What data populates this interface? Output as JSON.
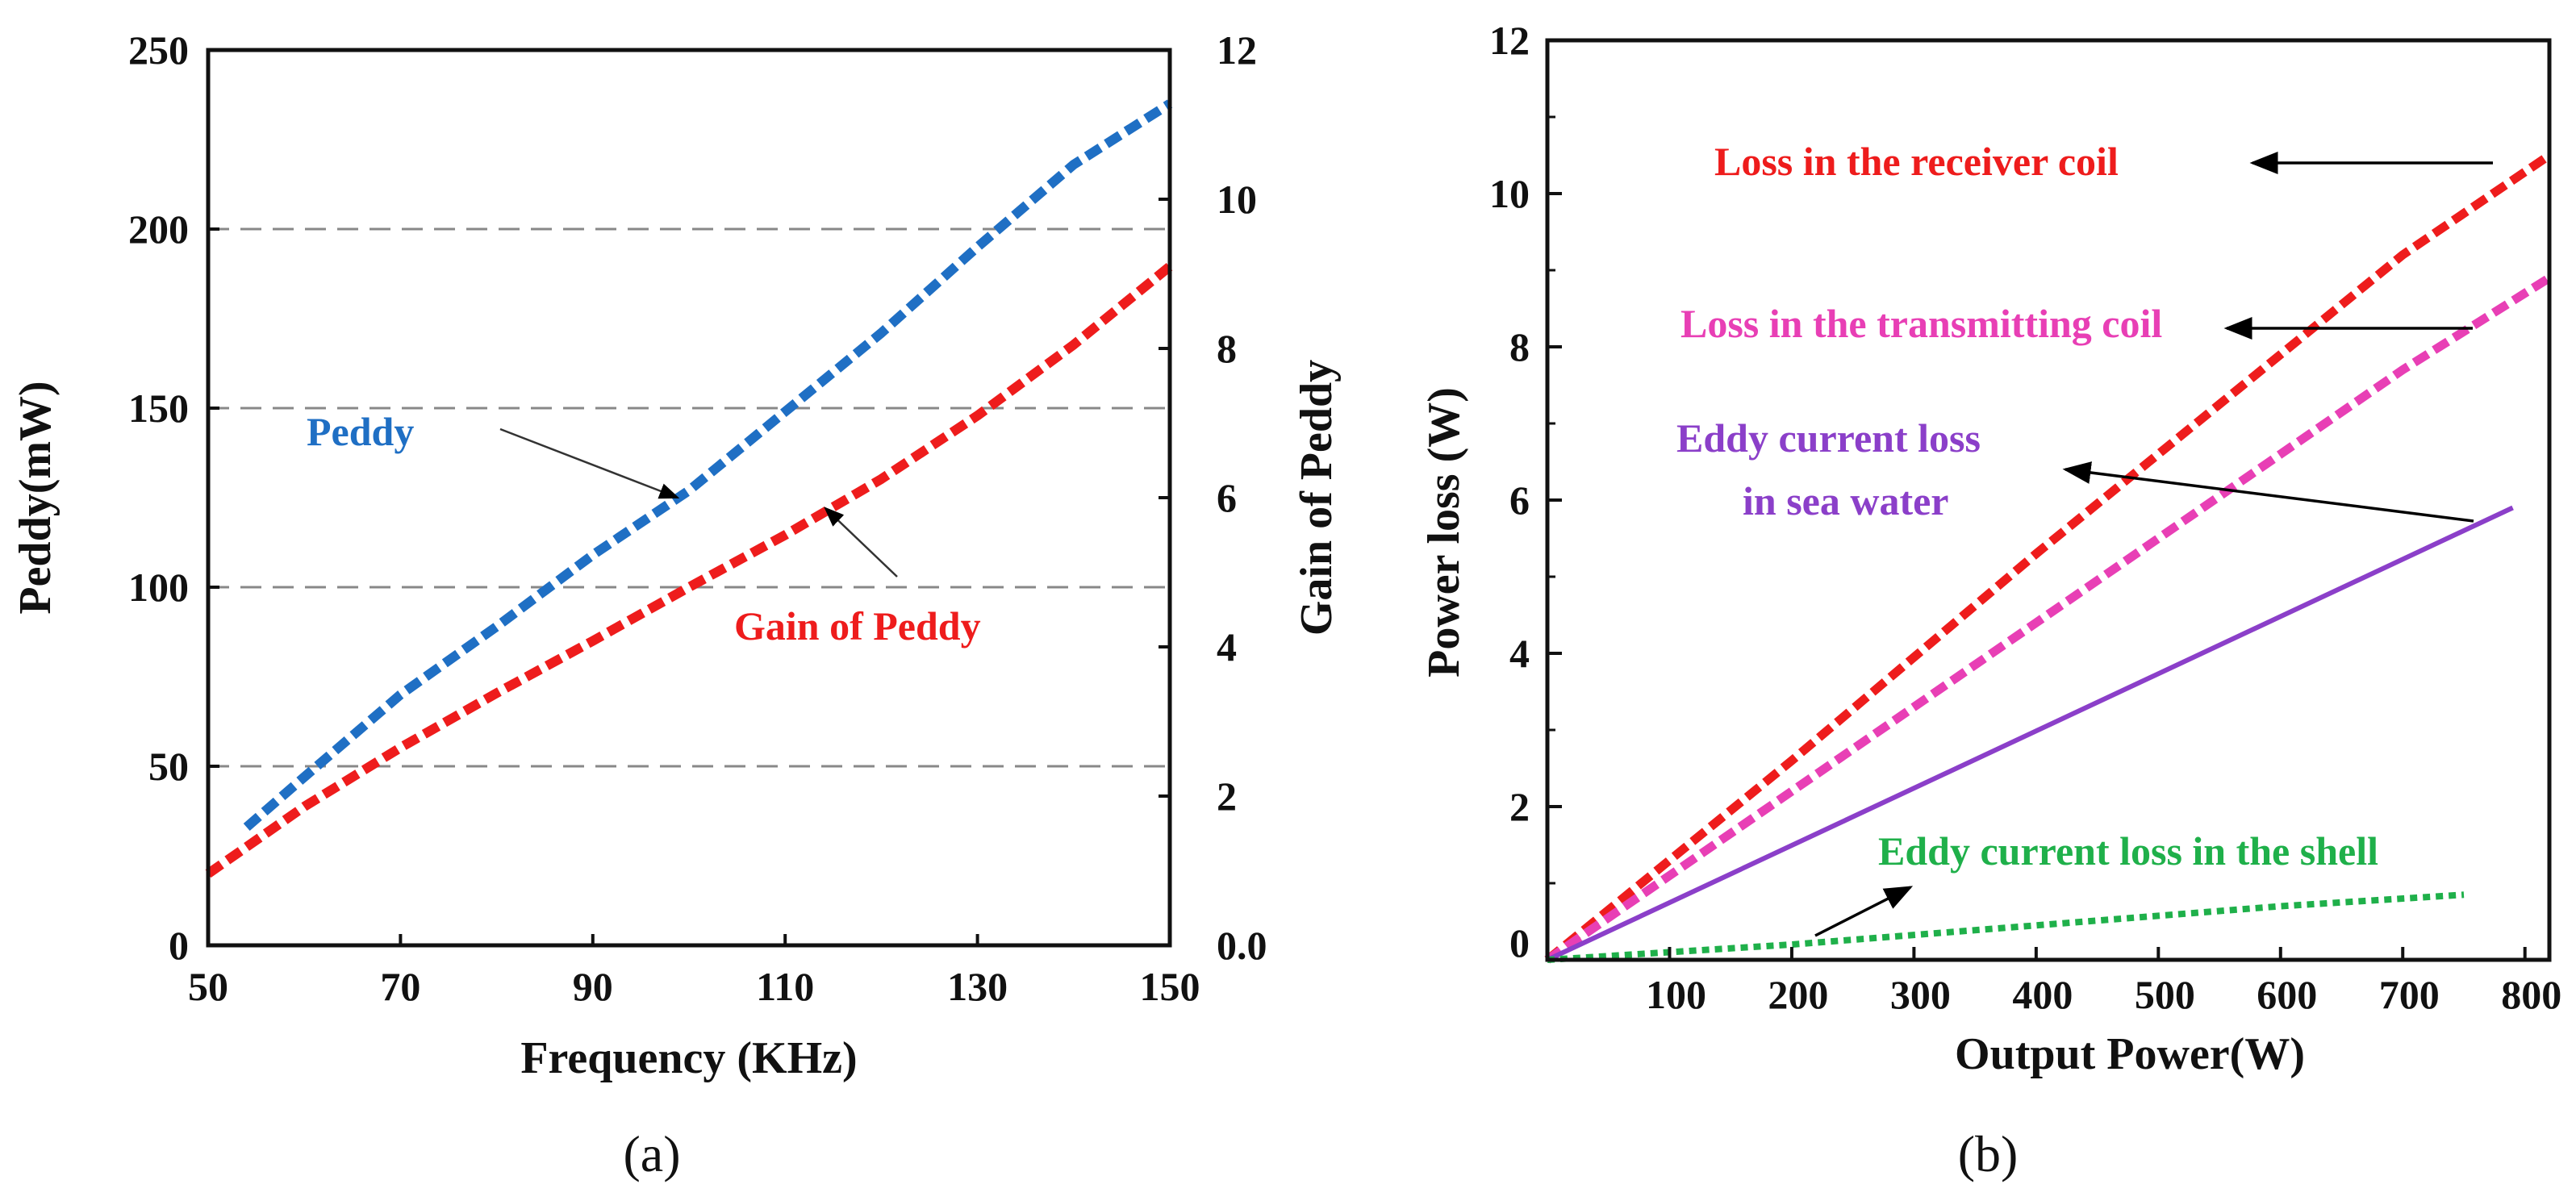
{
  "chart_data": [
    {
      "type": "line",
      "panel_label": "(a)",
      "xlabel": "Frequency (KHz)",
      "ylabel": "Peddy(mW)",
      "y2label": "Gain of Peddy",
      "xlim": [
        50,
        150
      ],
      "ylim": [
        0,
        250
      ],
      "y2lim": [
        0,
        12
      ],
      "xticks": [
        "50",
        "70",
        "90",
        "110",
        "130",
        "150"
      ],
      "yticks": [
        "0",
        "50",
        "100",
        "150",
        "200",
        "250"
      ],
      "y2ticks": [
        "0.0",
        "2",
        "4",
        "6",
        "8",
        "10",
        "12"
      ],
      "grid": "dashed horizontal at 50, 100, 150, 200",
      "series": [
        {
          "name": "Peddy",
          "axis": "left",
          "color": "#1f6fc4",
          "style": "dashed",
          "x": [
            54,
            60,
            70,
            80,
            90,
            100,
            110,
            120,
            130,
            140,
            150
          ],
          "y": [
            33,
            47,
            70,
            89,
            109,
            127,
            149,
            171,
            195,
            218,
            235
          ]
        },
        {
          "name": "Gain of Peddy",
          "axis": "right",
          "color": "#ee1c1c",
          "style": "dashed",
          "x": [
            50,
            60,
            70,
            80,
            90,
            100,
            110,
            120,
            130,
            140,
            150
          ],
          "y": [
            0.96,
            1.86,
            2.65,
            3.38,
            4.08,
            4.8,
            5.5,
            6.25,
            7.1,
            8.05,
            9.1
          ]
        }
      ],
      "annotations": [
        {
          "text": "Peddy",
          "color": "#1f6fc4",
          "points_to": "Peddy"
        },
        {
          "text": "Gain of Peddy",
          "color": "#ee1c1c",
          "points_to": "Gain of Peddy"
        }
      ]
    },
    {
      "type": "line",
      "panel_label": "(b)",
      "xlabel": "Output Power(W)",
      "ylabel": "Power loss (W)",
      "xlim": [
        0,
        820
      ],
      "ylim": [
        0,
        12
      ],
      "xticks": [
        "100",
        "200",
        "300",
        "400",
        "500",
        "600",
        "700",
        "800"
      ],
      "yticks": [
        "0",
        "2",
        "4",
        "6",
        "8",
        "10",
        "12"
      ],
      "grid": "off",
      "series": [
        {
          "name": "Loss in the receiver coil",
          "color": "#ee1c1c",
          "style": "dashed",
          "x": [
            0,
            100,
            200,
            300,
            400,
            500,
            600,
            700,
            820
          ],
          "y": [
            0,
            1.3,
            2.6,
            3.95,
            5.3,
            6.6,
            7.9,
            9.2,
            10.5
          ]
        },
        {
          "name": "Loss in the transmitting coil",
          "color": "#e83fb5",
          "style": "dashed",
          "x": [
            0,
            100,
            200,
            300,
            400,
            500,
            600,
            700,
            820
          ],
          "y": [
            0,
            1.1,
            2.2,
            3.3,
            4.4,
            5.5,
            6.6,
            7.7,
            8.9
          ]
        },
        {
          "name": "Eddy current  loss in sea water",
          "color": "#8b3fc9",
          "style": "solid",
          "x": [
            0,
            790
          ],
          "y": [
            0,
            5.9
          ]
        },
        {
          "name": "Eddy current  loss in the shell",
          "color": "#1fb04a",
          "style": "dotted",
          "x": [
            0,
            200,
            400,
            600,
            750
          ],
          "y": [
            0,
            0.2,
            0.45,
            0.7,
            0.85
          ]
        }
      ],
      "annotations": [
        {
          "text": "Loss in the receiver coil",
          "color": "#ee1c1c",
          "points_to": "Loss in the receiver coil"
        },
        {
          "text": "Loss in the transmitting coil",
          "color": "#e83fb5",
          "points_to": "Loss in the transmitting coil"
        },
        {
          "text": "Eddy current  loss",
          "color": "#8b3fc9",
          "points_to": "Eddy current  loss in sea water"
        },
        {
          "text": "in sea water",
          "color": "#8b3fc9",
          "points_to": "Eddy current  loss in sea water"
        },
        {
          "text": "Eddy current  loss in the shell",
          "color": "#1fb04a",
          "points_to": "Eddy current  loss in the shell"
        }
      ]
    }
  ]
}
